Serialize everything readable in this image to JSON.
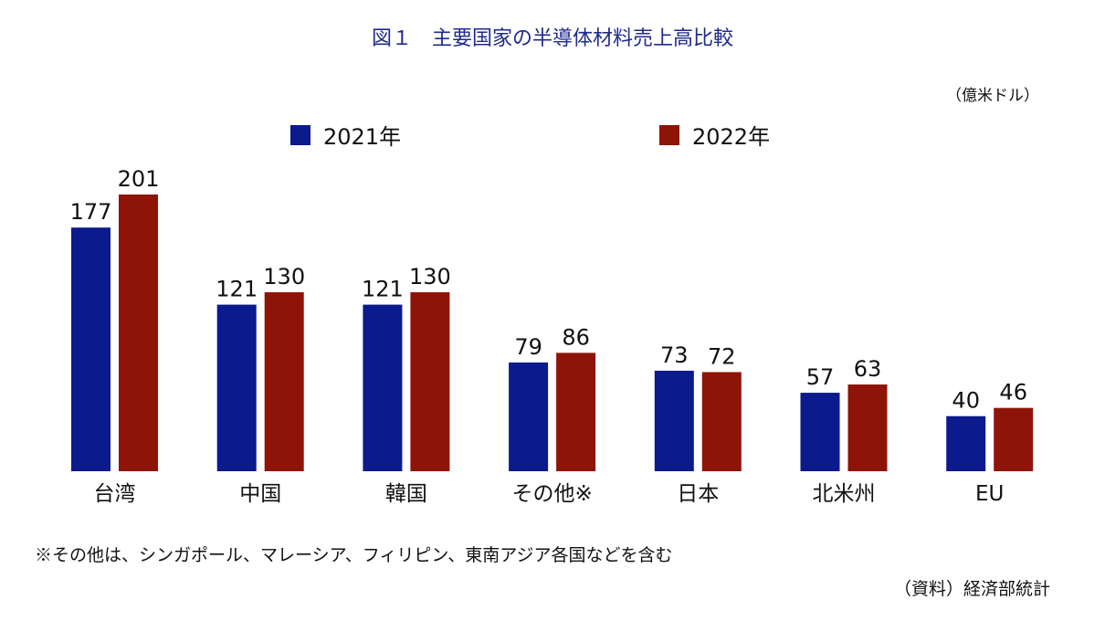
{
  "header": {
    "title": "図１　主要国家の半導体材料売上高比較",
    "unit": "（億米ドル）"
  },
  "footer": {
    "note": "※その他は、シンガポール、マレーシア、フィリピン、東南アジア各国などを含む",
    "source": "（資料）経済部統計"
  },
  "chart_data": {
    "type": "bar",
    "title": "図１　主要国家の半導体材料売上高比較",
    "categories": [
      "台湾",
      "中国",
      "韓国",
      "その他※",
      "日本",
      "北米州",
      "EU"
    ],
    "series": [
      {
        "name": "2021年",
        "values": [
          177,
          121,
          121,
          79,
          73,
          57,
          40
        ],
        "color": "#0b1a8c"
      },
      {
        "name": "2022年",
        "values": [
          201,
          130,
          130,
          86,
          72,
          63,
          46
        ],
        "color": "#8e1408"
      }
    ],
    "ylim": [
      0,
      201
    ],
    "grid": false,
    "legend": "top-center",
    "show_data_labels": true
  }
}
